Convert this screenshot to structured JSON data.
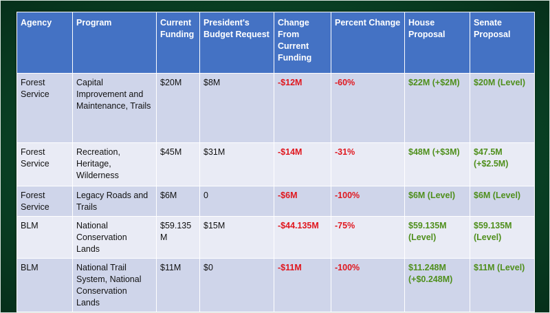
{
  "colors": {
    "header_bg": "#4472c4",
    "row_dark": "#cfd5ea",
    "row_light": "#e9ebf5",
    "negative": "#e0171e",
    "positive": "#4f8f1c",
    "background": "#0a4527"
  },
  "table": {
    "headers": {
      "agency": "Agency",
      "program": "Program",
      "current": "Current Funding",
      "request": "President's Budget Request",
      "change": "Change From Current Funding",
      "percent": "Percent Change",
      "house": "House Proposal",
      "senate": "Senate Proposal"
    },
    "rows": [
      {
        "agency": "Forest Service",
        "program": "Capital Improvement and Maintenance, Trails",
        "current": "$20M",
        "request": "$8M",
        "change": "-$12M",
        "percent": "-60%",
        "house": "$22M (+$2M)",
        "senate": "$20M (Level)"
      },
      {
        "agency": "Forest Service",
        "program": "Recreation, Heritage, Wilderness",
        "current": "$45M",
        "request": "$31M",
        "change": "-$14M",
        "percent": "-31%",
        "house": "$48M (+$3M)",
        "senate": "$47.5M (+$2.5M)"
      },
      {
        "agency": "Forest Service",
        "program": "Legacy Roads and Trails",
        "current": "$6M",
        "request": "0",
        "change": "-$6M",
        "percent": "-100%",
        "house": "$6M (Level)",
        "senate": "$6M (Level)"
      },
      {
        "agency": "BLM",
        "program": "National Conservation Lands",
        "current": "$59.135 M",
        "request": "$15M",
        "change": "-$44.135M",
        "percent": "-75%",
        "house": "$59.135M (Level)",
        "senate": "$59.135M (Level)"
      },
      {
        "agency": "BLM",
        "program": "National Trail System, National Conservation Lands",
        "current": "$11M",
        "request": "$0",
        "change": "-$11M",
        "percent": "-100%",
        "house": "$11.248M (+$0.248M)",
        "senate": "$11M (Level)"
      }
    ]
  }
}
